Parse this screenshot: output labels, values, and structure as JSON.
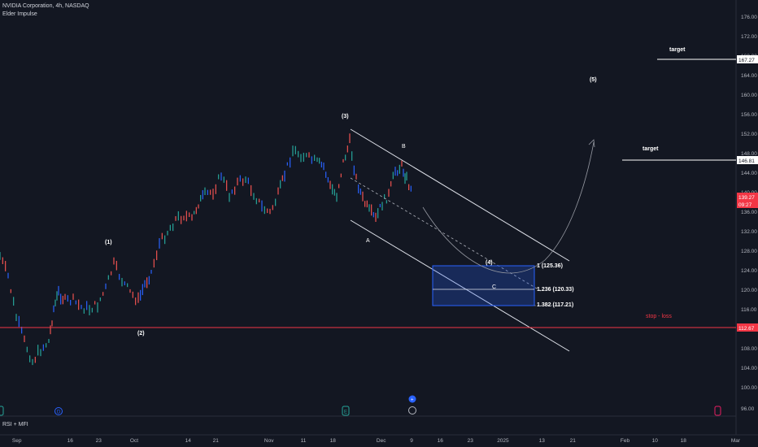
{
  "header": {
    "symbol_line": "NVIDIA Corporation, 4h, NASDAQ",
    "indicator": "Elder Impulse"
  },
  "lower_pane": {
    "label": "RSI + MFI"
  },
  "price_axis": {
    "ticks": [
      "176.00",
      "172.00",
      "168.00",
      "164.00",
      "160.00",
      "156.00",
      "152.00",
      "148.00",
      "144.00",
      "140.00",
      "136.00",
      "132.00",
      "128.00",
      "124.00",
      "120.00",
      "116.00",
      "112.00",
      "108.00",
      "104.00",
      "100.00",
      "96.00"
    ],
    "labels": {
      "target_top": "167.27",
      "target_mid": "146.81",
      "current_price": "139.27",
      "countdown": "09:27",
      "stop": "112.67"
    }
  },
  "time_axis": {
    "ticks": [
      "Sep",
      "16",
      "23",
      "Oct",
      "14",
      "21",
      "Nov",
      "11",
      "18",
      "Dec",
      "9",
      "16",
      "23",
      "2025",
      "13",
      "21",
      "Feb",
      "10",
      "18",
      "Mar"
    ]
  },
  "annotations": {
    "wave1": "(1)",
    "wave2": "(2)",
    "wave3": "(3)",
    "wave4": "(4)",
    "wave5": "(5)",
    "waveA": "A",
    "waveB": "B",
    "waveC": "C",
    "target1": "target",
    "target2": "target",
    "stop": "stop - loss",
    "fib1": "1 (125.36)",
    "fib2": "1.236 (120.33)",
    "fib3": "1.382 (117.21)"
  },
  "colors": {
    "background": "#131722",
    "up": "#26a69a",
    "down": "#ef5350",
    "neutral": "#2962ff",
    "stop_line": "#f23645",
    "zone": "#2962ff"
  },
  "icons": [
    "earnings-icon",
    "dividends-icon",
    "events-icon"
  ]
}
